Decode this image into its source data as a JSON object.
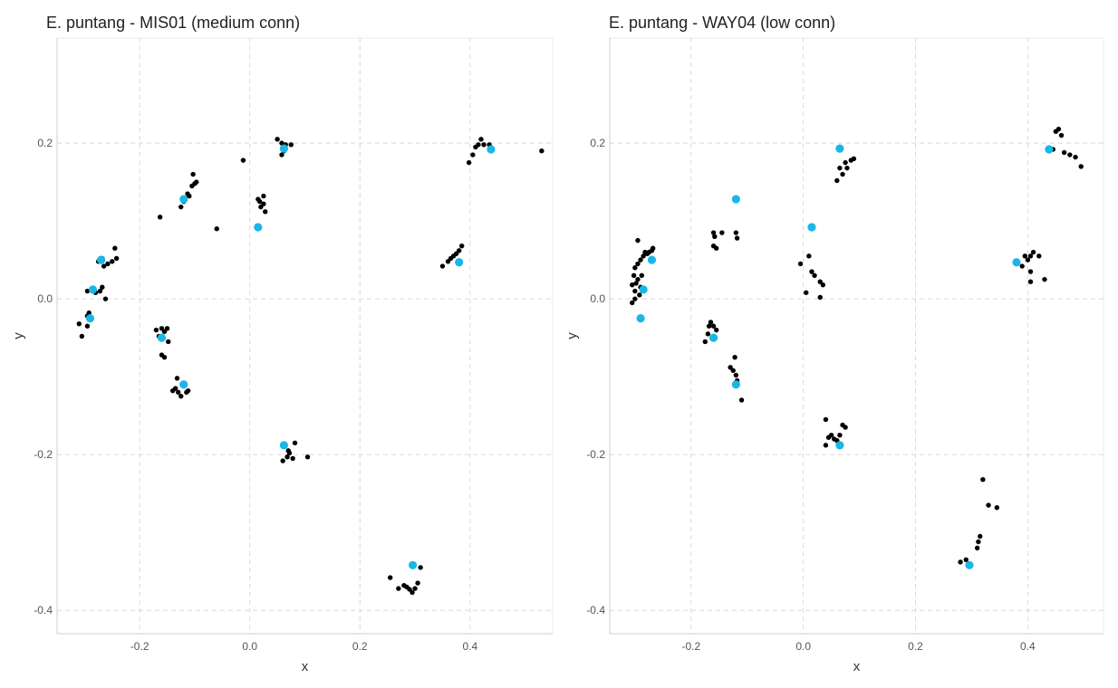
{
  "colors": {
    "point": "#000000",
    "highlight": "#1bb5e8",
    "grid": "#d9d9d9",
    "axis": "#d6d6d6",
    "text": "#555555",
    "title": "#222222"
  },
  "chart_data": [
    {
      "type": "scatter",
      "title": "E. puntang - MIS01 (medium conn)",
      "xlabel": "x",
      "ylabel": "y",
      "xlim": [
        -0.35,
        0.55
      ],
      "ylim": [
        -0.43,
        0.335
      ],
      "xticks": [
        -0.2,
        0.0,
        0.2,
        0.4
      ],
      "yticks": [
        -0.4,
        -0.2,
        0.0,
        0.2
      ],
      "xtick_labels": [
        "-0.2",
        "0.0",
        "0.2",
        "0.4"
      ],
      "ytick_labels": [
        "-0.4",
        "-0.2",
        "0.0",
        "0.2"
      ],
      "grid": true,
      "series": [
        {
          "role": "sample",
          "points": [
            [
              -0.31,
              -0.032
            ],
            [
              -0.305,
              -0.048
            ],
            [
              -0.295,
              -0.035
            ],
            [
              -0.29,
              -0.025
            ],
            [
              -0.295,
              -0.022
            ],
            [
              -0.292,
              -0.018
            ],
            [
              -0.295,
              0.01
            ],
            [
              -0.28,
              0.008
            ],
            [
              -0.272,
              0.01
            ],
            [
              -0.268,
              0.015
            ],
            [
              -0.262,
              0.0
            ],
            [
              -0.275,
              0.048
            ],
            [
              -0.268,
              0.052
            ],
            [
              -0.265,
              0.042
            ],
            [
              -0.258,
              0.045
            ],
            [
              -0.25,
              0.048
            ],
            [
              -0.245,
              0.065
            ],
            [
              -0.242,
              0.052
            ],
            [
              -0.163,
              0.105
            ],
            [
              -0.125,
              0.118
            ],
            [
              -0.12,
              0.125
            ],
            [
              -0.113,
              0.135
            ],
            [
              -0.11,
              0.132
            ],
            [
              -0.105,
              0.145
            ],
            [
              -0.1,
              0.148
            ],
            [
              -0.097,
              0.15
            ],
            [
              -0.103,
              0.16
            ],
            [
              -0.06,
              0.09
            ],
            [
              -0.012,
              0.178
            ],
            [
              -0.17,
              -0.04
            ],
            [
              -0.165,
              -0.048
            ],
            [
              -0.16,
              -0.038
            ],
            [
              -0.155,
              -0.042
            ],
            [
              -0.15,
              -0.038
            ],
            [
              -0.148,
              -0.055
            ],
            [
              -0.16,
              -0.072
            ],
            [
              -0.155,
              -0.075
            ],
            [
              -0.14,
              -0.118
            ],
            [
              -0.135,
              -0.115
            ],
            [
              -0.13,
              -0.12
            ],
            [
              -0.132,
              -0.102
            ],
            [
              -0.125,
              -0.125
            ],
            [
              -0.115,
              -0.12
            ],
            [
              -0.112,
              -0.118
            ],
            [
              0.015,
              0.128
            ],
            [
              0.02,
              0.118
            ],
            [
              0.025,
              0.122
            ],
            [
              0.028,
              0.112
            ],
            [
              0.025,
              0.132
            ],
            [
              0.018,
              0.125
            ],
            [
              0.05,
              0.205
            ],
            [
              0.058,
              0.2
            ],
            [
              0.058,
              0.185
            ],
            [
              0.062,
              0.19
            ],
            [
              0.075,
              0.198
            ],
            [
              0.065,
              0.198
            ],
            [
              0.06,
              -0.208
            ],
            [
              0.068,
              -0.203
            ],
            [
              0.072,
              -0.198
            ],
            [
              0.078,
              -0.205
            ],
            [
              0.082,
              -0.185
            ],
            [
              0.105,
              -0.203
            ],
            [
              0.07,
              -0.195
            ],
            [
              0.255,
              -0.358
            ],
            [
              0.27,
              -0.372
            ],
            [
              0.28,
              -0.368
            ],
            [
              0.285,
              -0.37
            ],
            [
              0.29,
              -0.373
            ],
            [
              0.295,
              -0.377
            ],
            [
              0.3,
              -0.372
            ],
            [
              0.305,
              -0.365
            ],
            [
              0.31,
              -0.345
            ],
            [
              0.35,
              0.042
            ],
            [
              0.36,
              0.048
            ],
            [
              0.365,
              0.052
            ],
            [
              0.37,
              0.055
            ],
            [
              0.375,
              0.058
            ],
            [
              0.38,
              0.062
            ],
            [
              0.385,
              0.068
            ],
            [
              0.398,
              0.175
            ],
            [
              0.405,
              0.185
            ],
            [
              0.41,
              0.195
            ],
            [
              0.415,
              0.198
            ],
            [
              0.42,
              0.205
            ],
            [
              0.425,
              0.198
            ],
            [
              0.435,
              0.198
            ],
            [
              0.53,
              0.19
            ]
          ]
        },
        {
          "role": "reference",
          "points": [
            [
              -0.29,
              -0.025
            ],
            [
              -0.285,
              0.012
            ],
            [
              -0.27,
              0.05
            ],
            [
              -0.12,
              0.128
            ],
            [
              -0.16,
              -0.05
            ],
            [
              -0.12,
              -0.11
            ],
            [
              0.015,
              0.092
            ],
            [
              0.062,
              0.193
            ],
            [
              0.062,
              -0.188
            ],
            [
              0.296,
              -0.342
            ],
            [
              0.38,
              0.047
            ],
            [
              0.438,
              0.192
            ]
          ]
        }
      ]
    },
    {
      "type": "scatter",
      "title": "E. puntang - WAY04 (low conn)",
      "xlabel": "x",
      "ylabel": "y",
      "xlim": [
        -0.345,
        0.535
      ],
      "ylim": [
        -0.43,
        0.335
      ],
      "xticks": [
        -0.2,
        0.0,
        0.2,
        0.4
      ],
      "yticks": [
        -0.4,
        -0.2,
        0.0,
        0.2
      ],
      "xtick_labels": [
        "-0.2",
        "0.0",
        "0.2",
        "0.4"
      ],
      "ytick_labels": [
        "-0.4",
        "-0.2",
        "0.0",
        "0.2"
      ],
      "grid": true,
      "series": [
        {
          "role": "sample",
          "points": [
            [
              -0.305,
              -0.005
            ],
            [
              -0.3,
              0.01
            ],
            [
              -0.298,
              0.02
            ],
            [
              -0.295,
              0.025
            ],
            [
              -0.302,
              0.03
            ],
            [
              -0.3,
              0.04
            ],
            [
              -0.295,
              0.045
            ],
            [
              -0.292,
              0.005
            ],
            [
              -0.29,
              0.015
            ],
            [
              -0.288,
              0.03
            ],
            [
              -0.29,
              0.05
            ],
            [
              -0.285,
              0.055
            ],
            [
              -0.282,
              0.06
            ],
            [
              -0.278,
              0.058
            ],
            [
              -0.275,
              0.06
            ],
            [
              -0.27,
              0.062
            ],
            [
              -0.268,
              0.065
            ],
            [
              -0.295,
              0.075
            ],
            [
              -0.305,
              0.018
            ],
            [
              -0.3,
              0.0
            ],
            [
              -0.175,
              -0.055
            ],
            [
              -0.17,
              -0.045
            ],
            [
              -0.168,
              -0.035
            ],
            [
              -0.165,
              -0.03
            ],
            [
              -0.16,
              -0.035
            ],
            [
              -0.155,
              -0.04
            ],
            [
              -0.16,
              0.085
            ],
            [
              -0.158,
              0.08
            ],
            [
              -0.155,
              0.065
            ],
            [
              -0.16,
              0.068
            ],
            [
              -0.145,
              0.085
            ],
            [
              -0.12,
              0.085
            ],
            [
              -0.118,
              0.078
            ],
            [
              -0.13,
              -0.088
            ],
            [
              -0.125,
              -0.092
            ],
            [
              -0.12,
              -0.098
            ],
            [
              -0.118,
              -0.105
            ],
            [
              -0.122,
              -0.075
            ],
            [
              -0.11,
              -0.13
            ],
            [
              -0.005,
              0.045
            ],
            [
              0.01,
              0.055
            ],
            [
              0.015,
              0.035
            ],
            [
              0.02,
              0.03
            ],
            [
              0.005,
              0.008
            ],
            [
              0.03,
              0.002
            ],
            [
              0.03,
              0.022
            ],
            [
              0.035,
              0.018
            ],
            [
              0.04,
              -0.155
            ],
            [
              0.045,
              -0.178
            ],
            [
              0.05,
              -0.175
            ],
            [
              0.055,
              -0.18
            ],
            [
              0.06,
              -0.182
            ],
            [
              0.065,
              -0.175
            ],
            [
              0.07,
              -0.162
            ],
            [
              0.075,
              -0.165
            ],
            [
              0.04,
              -0.188
            ],
            [
              0.06,
              0.152
            ],
            [
              0.065,
              0.168
            ],
            [
              0.07,
              0.16
            ],
            [
              0.075,
              0.175
            ],
            [
              0.078,
              0.168
            ],
            [
              0.085,
              0.178
            ],
            [
              0.09,
              0.18
            ],
            [
              0.28,
              -0.338
            ],
            [
              0.29,
              -0.335
            ],
            [
              0.31,
              -0.32
            ],
            [
              0.312,
              -0.312
            ],
            [
              0.315,
              -0.305
            ],
            [
              0.32,
              -0.232
            ],
            [
              0.33,
              -0.265
            ],
            [
              0.345,
              -0.268
            ],
            [
              0.39,
              0.042
            ],
            [
              0.395,
              0.055
            ],
            [
              0.4,
              0.05
            ],
            [
              0.405,
              0.055
            ],
            [
              0.41,
              0.06
            ],
            [
              0.42,
              0.055
            ],
            [
              0.43,
              0.025
            ],
            [
              0.405,
              0.035
            ],
            [
              0.405,
              0.022
            ],
            [
              0.445,
              0.192
            ],
            [
              0.45,
              0.215
            ],
            [
              0.455,
              0.218
            ],
            [
              0.46,
              0.21
            ],
            [
              0.465,
              0.188
            ],
            [
              0.475,
              0.185
            ],
            [
              0.485,
              0.182
            ],
            [
              0.495,
              0.17
            ]
          ]
        },
        {
          "role": "reference",
          "points": [
            [
              -0.29,
              -0.025
            ],
            [
              -0.285,
              0.012
            ],
            [
              -0.27,
              0.05
            ],
            [
              -0.12,
              0.128
            ],
            [
              -0.16,
              -0.05
            ],
            [
              -0.12,
              -0.11
            ],
            [
              0.015,
              0.092
            ],
            [
              0.065,
              0.193
            ],
            [
              0.065,
              -0.188
            ],
            [
              0.296,
              -0.342
            ],
            [
              0.38,
              0.047
            ],
            [
              0.438,
              0.192
            ]
          ]
        }
      ]
    }
  ]
}
